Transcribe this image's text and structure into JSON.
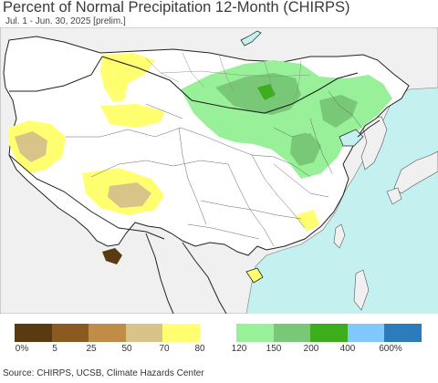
{
  "header": {
    "title": "Percent of Normal Precipitation 12-Month (CHIRPS)",
    "subtitle": "Jul. 1 - Jun. 30, 2025 [prelim.]"
  },
  "legend": {
    "colors": [
      "#5a3a10",
      "#8b5a20",
      "#c08c48",
      "#d8c488",
      "#ffff70",
      "#ffffff",
      "#98f098",
      "#78c878",
      "#3cae1c",
      "#80c8ff",
      "#2c7cbc"
    ],
    "labels": [
      "0%",
      "5",
      "25",
      "50",
      "70",
      "80",
      "120",
      "150",
      "200",
      "400",
      "600%"
    ]
  },
  "map": {
    "ocean_color": "#c4f0f0",
    "land_color": "#ffffff",
    "outside_color": "#f0f0f0",
    "border_color": "#222222",
    "province_color": "#555555"
  },
  "footer": {
    "source": "Source: CHIRPS, UCSB, Climate Hazards Center"
  }
}
